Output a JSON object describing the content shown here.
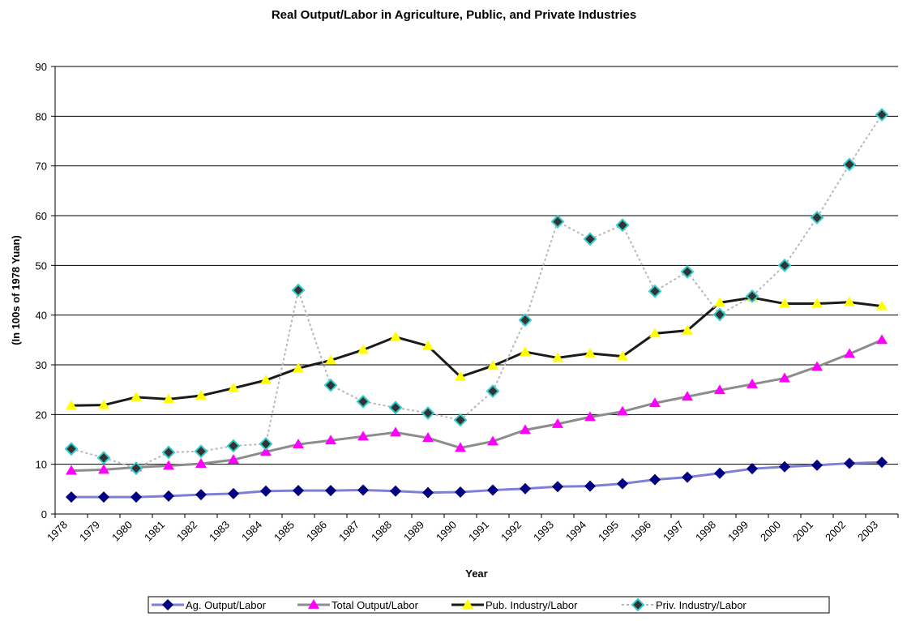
{
  "chart_data": {
    "type": "line",
    "title": "Real Output/Labor in Agriculture, Public, and Private Industries",
    "x_label": "Year",
    "y_label": "(In 100s of 1978 Yuan)",
    "categories": [
      "1978",
      "1979",
      "1980",
      "1981",
      "1982",
      "1983",
      "1984",
      "1985",
      "1986",
      "1987",
      "1988",
      "1989",
      "1990",
      "1991",
      "1992",
      "1993",
      "1994",
      "1995",
      "1996",
      "1997",
      "1998",
      "1999",
      "2000",
      "2001",
      "2002",
      "2003"
    ],
    "ylim": [
      0,
      90
    ],
    "yticks": [
      0,
      10,
      20,
      30,
      40,
      50,
      60,
      70,
      80,
      90
    ],
    "grid": true,
    "legend": "bottom",
    "series": [
      {
        "name": "Ag. Output/Labor",
        "color": "#7f7fd8",
        "marker": "diamond",
        "marker_color": "#000080",
        "line_width": 3,
        "values": [
          3.4,
          3.4,
          3.4,
          3.6,
          3.9,
          4.1,
          4.6,
          4.7,
          4.7,
          4.8,
          4.6,
          4.3,
          4.4,
          4.8,
          5.1,
          5.5,
          5.6,
          6.1,
          6.9,
          7.4,
          8.2,
          9.1,
          9.5,
          9.8,
          10.2,
          10.4
        ]
      },
      {
        "name": "Total Output/Labor",
        "color": "#8c8c8c",
        "marker": "triangle",
        "marker_color": "#ff00ff",
        "line_width": 3,
        "values": [
          8.7,
          8.9,
          9.4,
          9.7,
          10.1,
          10.9,
          12.5,
          14.0,
          14.8,
          15.6,
          16.4,
          15.3,
          13.3,
          14.6,
          16.9,
          18.1,
          19.5,
          20.6,
          22.3,
          23.6,
          24.9,
          26.1,
          27.3,
          29.6,
          32.2,
          35.0
        ]
      },
      {
        "name": "Pub. Industry/Labor",
        "color": "#1a1a1a",
        "marker": "triangle",
        "marker_color": "#ffff00",
        "line_width": 3,
        "values": [
          21.8,
          21.9,
          23.5,
          23.1,
          23.8,
          25.3,
          26.9,
          29.3,
          30.9,
          33.0,
          35.6,
          33.8,
          27.6,
          29.8,
          32.6,
          31.4,
          32.3,
          31.7,
          36.3,
          36.9,
          42.5,
          43.5,
          42.3,
          42.3,
          42.6,
          41.8
        ]
      },
      {
        "name": "Priv. Industry/Labor",
        "color": "#b8b8b8",
        "marker": "diamond",
        "marker_color": "#33cccc",
        "line_width": 2,
        "values": [
          13.1,
          11.3,
          9.2,
          12.4,
          12.6,
          13.7,
          14.1,
          45.0,
          25.9,
          22.6,
          21.4,
          20.3,
          18.9,
          24.7,
          39.0,
          58.8,
          55.3,
          58.1,
          44.8,
          48.7,
          40.1,
          43.8,
          50.0,
          59.6,
          70.3,
          80.3
        ]
      }
    ]
  }
}
